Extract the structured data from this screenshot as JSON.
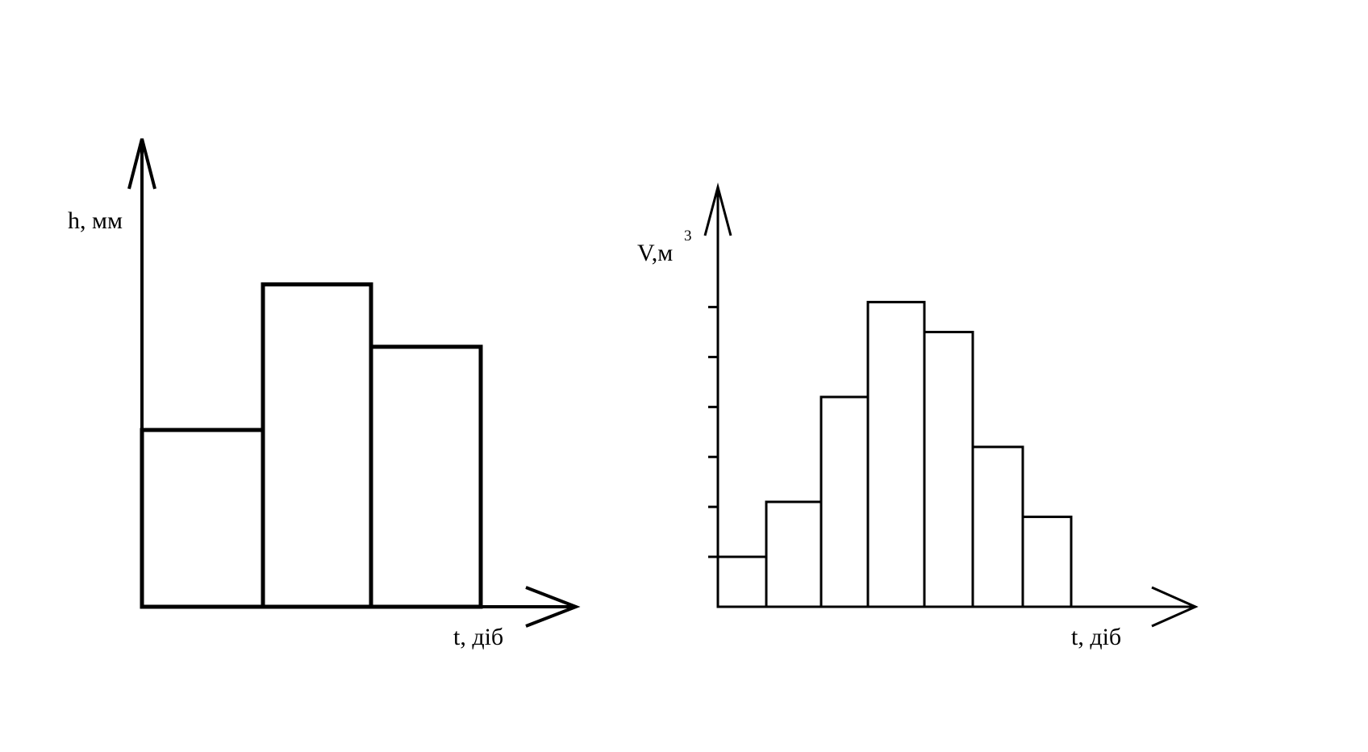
{
  "chart_data": [
    {
      "type": "bar",
      "xlabel": "t, діб",
      "ylabel": "h, мм",
      "values": [
        3.4,
        6.2,
        5.0
      ],
      "ylim": [
        0,
        9
      ],
      "ticks": false,
      "grid": false,
      "stroke_color": "#000000"
    },
    {
      "type": "bar",
      "xlabel": "t, діб",
      "ylabel_main": "V,м",
      "ylabel_sup": "3",
      "values": [
        1.0,
        2.1,
        4.2,
        6.1,
        5.5,
        3.2,
        1.8
      ],
      "ylim": [
        0,
        8.4
      ],
      "yticks": [
        1,
        2,
        3,
        4,
        5,
        6
      ],
      "grid": false,
      "stroke_color": "#000000"
    }
  ]
}
